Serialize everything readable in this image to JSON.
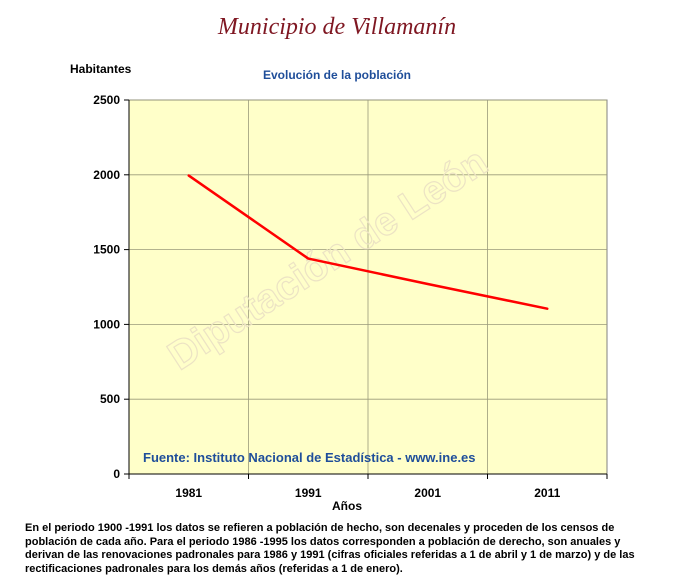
{
  "header": {
    "title": "Municipio de Villamanín"
  },
  "chart_data": {
    "type": "line",
    "title": "Evolución de la población",
    "ylabel": "Habitantes",
    "xlabel": "Años",
    "categories": [
      "1981",
      "1991",
      "2001",
      "2011"
    ],
    "series": [
      {
        "values": [
          1995,
          1440,
          1270,
          1105
        ],
        "color": "#ff0000"
      }
    ],
    "ylim": [
      0,
      2500
    ],
    "yticks": [
      0,
      500,
      1000,
      1500,
      2000,
      2500
    ],
    "grid": true,
    "plot_background": "#ffffc9",
    "source": "Fuente: Instituto Nacional de Estadística - www.ine.es",
    "watermark": "Diputación de León"
  },
  "footnote": "En el periodo 1900 -1991 los datos se refieren a población de hecho, son decenales y proceden de los censos de población de cada año. Para el periodo 1986 -1995 los datos corresponden a población de derecho, son anuales y derivan de las renovaciones padronales para 1986 y 1991 (cifras oficiales referidas a 1 de abril y 1 de marzo) y de las rectificaciones padronales para los demás años (referidas a 1 de enero)."
}
